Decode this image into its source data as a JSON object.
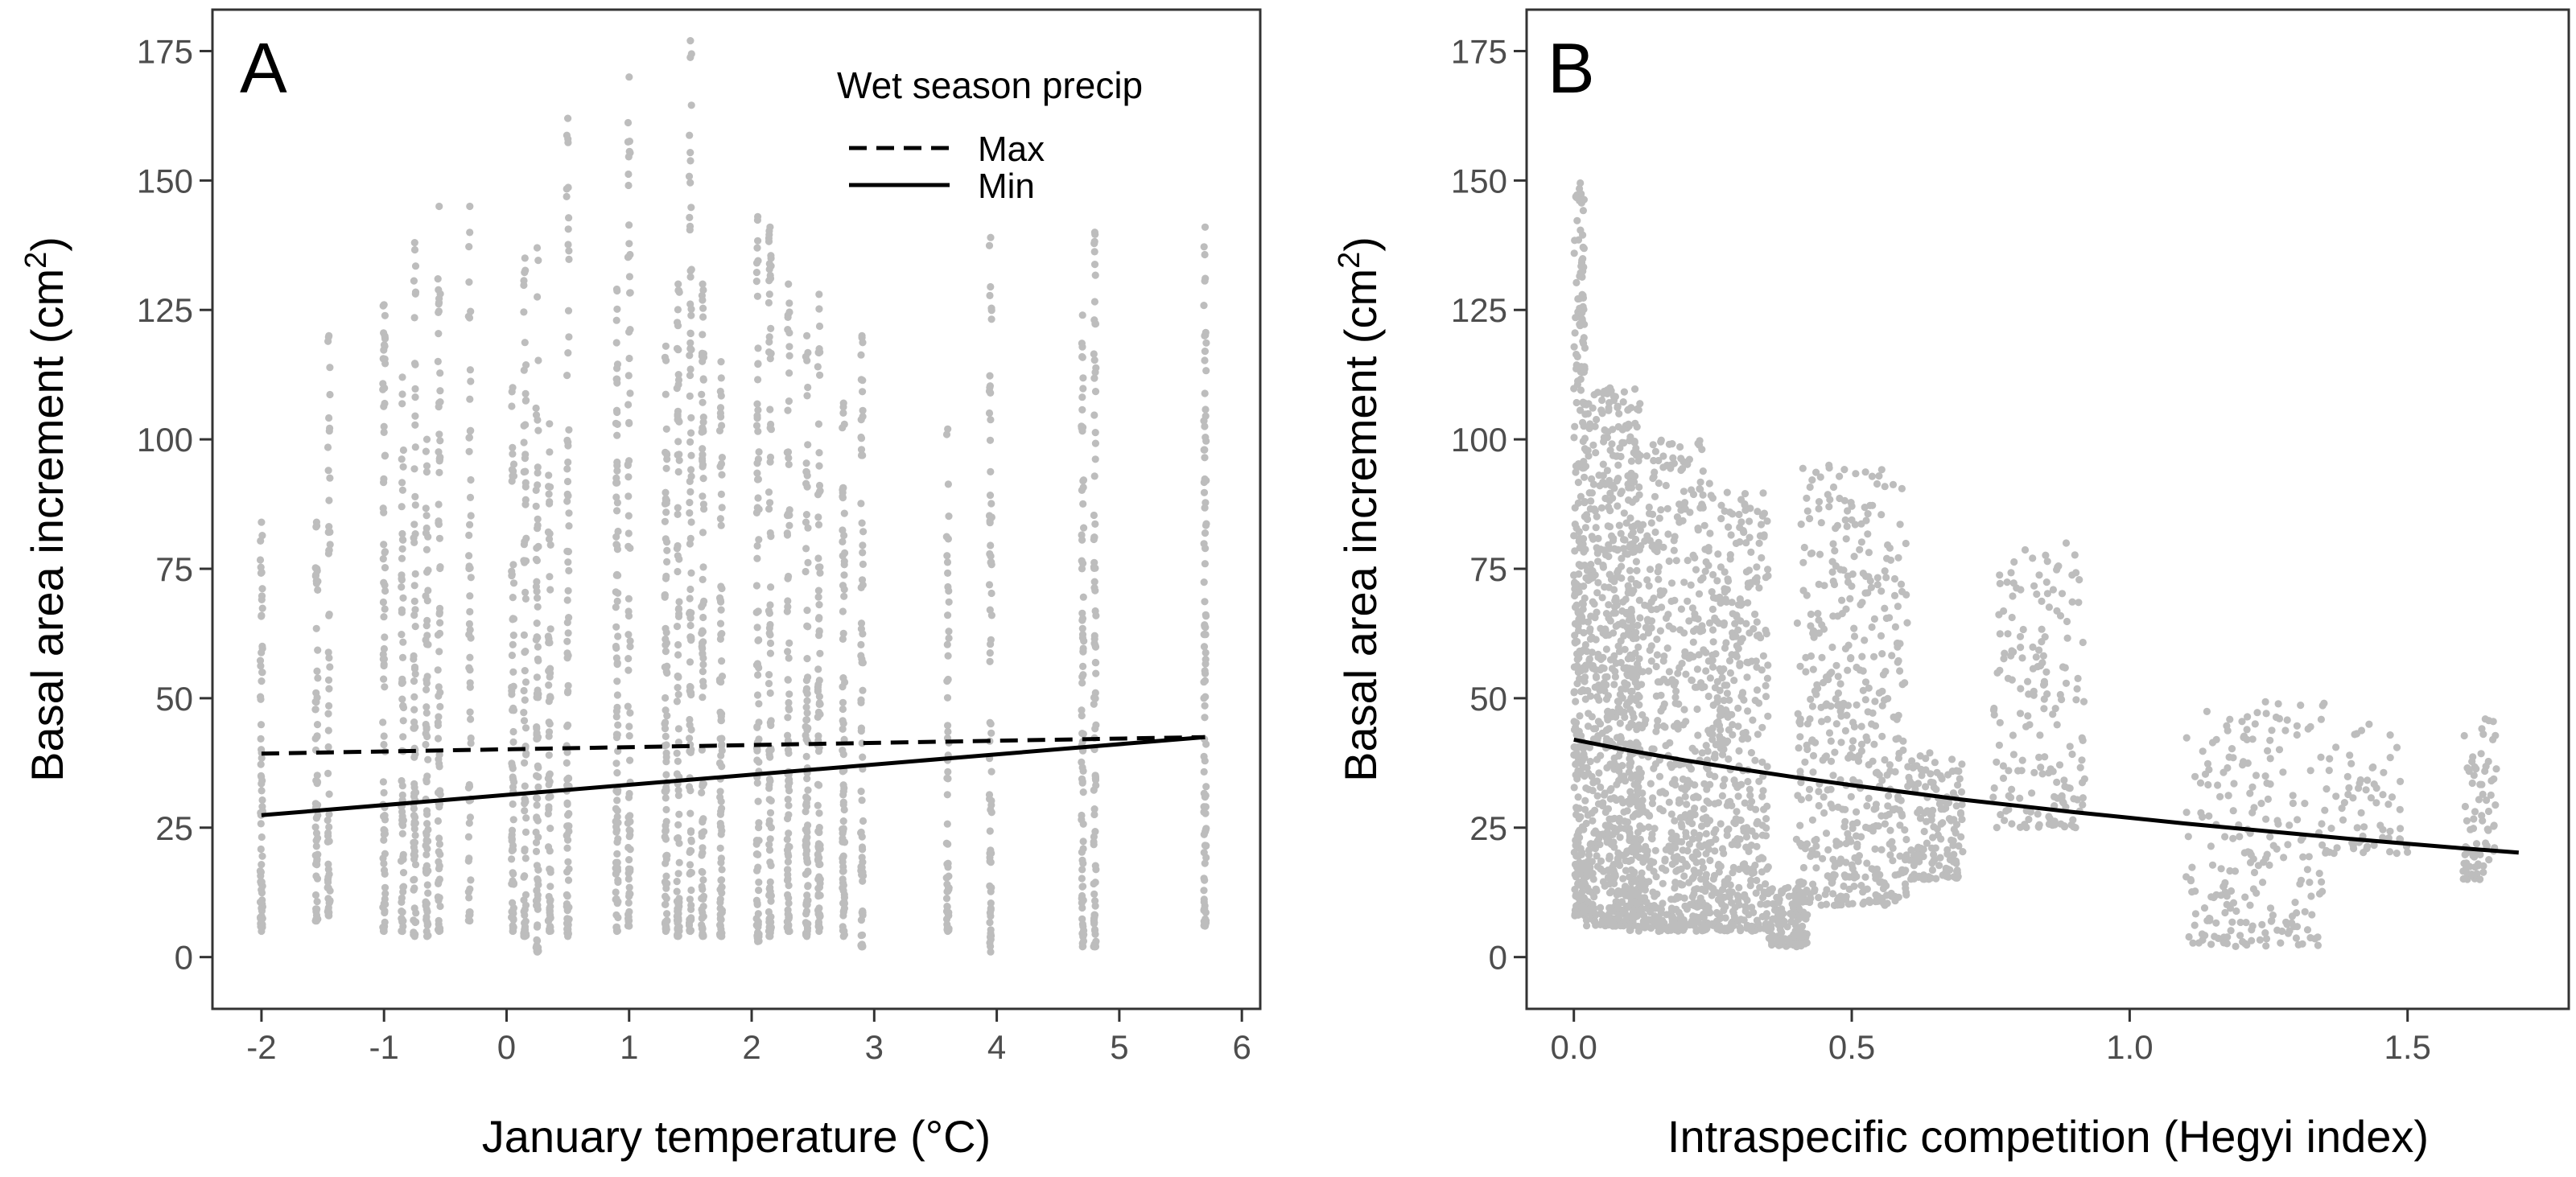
{
  "chart_data": [
    {
      "type": "scatter",
      "panel_label": "A",
      "xlabel": "January temperature (°C)",
      "ylabel": "Basal area increment",
      "ylabel_unit": "(cm",
      "ylabel_unit_sup": "2",
      "ylabel_unit_close": ")",
      "xlim": [
        -2.4,
        6.15
      ],
      "ylim": [
        -10,
        183
      ],
      "xticks": [
        -2,
        -1,
        0,
        1,
        2,
        3,
        4,
        5,
        6
      ],
      "xtick_labels": [
        "-2",
        "-1",
        "0",
        "1",
        "2",
        "3",
        "4",
        "5",
        "6"
      ],
      "yticks": [
        0,
        25,
        50,
        75,
        100,
        125,
        150,
        175
      ],
      "ytick_labels": [
        "0",
        "25",
        "50",
        "75",
        "100",
        "125",
        "150",
        "175"
      ],
      "point_color": "#bdbdbd",
      "line_color": "#000000",
      "legend": {
        "title": "Wet season precip",
        "position": "top-right",
        "entries": [
          {
            "label": "Max",
            "dash": "dashed"
          },
          {
            "label": "Min",
            "dash": "solid"
          }
        ]
      },
      "series": [
        {
          "name": "Max",
          "dash": "dashed",
          "x": [
            -2,
            5.7
          ],
          "y": [
            39.3,
            42.5
          ]
        },
        {
          "name": "Min",
          "dash": "solid",
          "x": [
            -2,
            5.7
          ],
          "y": [
            27.4,
            42.5
          ]
        }
      ],
      "scatter": {
        "description": "observed tree-level increments grouped at site January temperatures",
        "columns": [
          {
            "x": -2.0,
            "min": 5,
            "max": 84,
            "n": 70
          },
          {
            "x": -1.55,
            "min": 7,
            "max": 84,
            "n": 60
          },
          {
            "x": -1.45,
            "min": 8,
            "max": 120,
            "n": 60
          },
          {
            "x": -1.0,
            "min": 5,
            "max": 126,
            "n": 80
          },
          {
            "x": -0.85,
            "min": 5,
            "max": 112,
            "n": 70
          },
          {
            "x": -0.75,
            "min": 4,
            "max": 138,
            "n": 80
          },
          {
            "x": -0.65,
            "min": 4,
            "max": 100,
            "n": 70
          },
          {
            "x": -0.55,
            "min": 5,
            "max": 145,
            "n": 80
          },
          {
            "x": -0.3,
            "min": 7,
            "max": 145,
            "n": 60
          },
          {
            "x": 0.05,
            "min": 5,
            "max": 110,
            "n": 70
          },
          {
            "x": 0.15,
            "min": 4,
            "max": 135,
            "n": 80
          },
          {
            "x": 0.25,
            "min": 1,
            "max": 137,
            "n": 90
          },
          {
            "x": 0.35,
            "min": 5,
            "max": 103,
            "n": 70
          },
          {
            "x": 0.5,
            "min": 4,
            "max": 162,
            "n": 90
          },
          {
            "x": 0.9,
            "min": 5,
            "max": 129,
            "n": 90
          },
          {
            "x": 1.0,
            "min": 6,
            "max": 170,
            "n": 80
          },
          {
            "x": 1.3,
            "min": 5,
            "max": 118,
            "n": 90
          },
          {
            "x": 1.4,
            "min": 4,
            "max": 130,
            "n": 90
          },
          {
            "x": 1.5,
            "min": 5,
            "max": 177,
            "n": 100
          },
          {
            "x": 1.6,
            "min": 4,
            "max": 130,
            "n": 90
          },
          {
            "x": 1.75,
            "min": 4,
            "max": 115,
            "n": 90
          },
          {
            "x": 2.05,
            "min": 3,
            "max": 143,
            "n": 90
          },
          {
            "x": 2.15,
            "min": 4,
            "max": 141,
            "n": 90
          },
          {
            "x": 2.3,
            "min": 5,
            "max": 130,
            "n": 90
          },
          {
            "x": 2.45,
            "min": 4,
            "max": 120,
            "n": 90
          },
          {
            "x": 2.55,
            "min": 5,
            "max": 128,
            "n": 90
          },
          {
            "x": 2.75,
            "min": 4,
            "max": 107,
            "n": 80
          },
          {
            "x": 2.9,
            "min": 2,
            "max": 120,
            "n": 70
          },
          {
            "x": 3.6,
            "min": 5,
            "max": 102,
            "n": 60
          },
          {
            "x": 3.95,
            "min": 1,
            "max": 139,
            "n": 70
          },
          {
            "x": 4.7,
            "min": 2,
            "max": 124,
            "n": 80
          },
          {
            "x": 4.8,
            "min": 2,
            "max": 140,
            "n": 90
          },
          {
            "x": 5.7,
            "min": 6,
            "max": 141,
            "n": 100
          }
        ]
      }
    },
    {
      "type": "scatter",
      "panel_label": "B",
      "xlabel": "Intraspecific competition (Hegyi index)",
      "ylabel": "Basal area increment",
      "ylabel_unit": "(cm",
      "ylabel_unit_sup": "2",
      "ylabel_unit_close": ")",
      "xlim": [
        -0.085,
        1.79
      ],
      "ylim": [
        -10,
        183
      ],
      "xticks": [
        0.0,
        0.5,
        1.0,
        1.5
      ],
      "xtick_labels": [
        "0.0",
        "0.5",
        "1.0",
        "1.5"
      ],
      "yticks": [
        0,
        25,
        50,
        75,
        100,
        125,
        150,
        175
      ],
      "ytick_labels": [
        "0",
        "25",
        "50",
        "75",
        "100",
        "125",
        "150",
        "175"
      ],
      "point_color": "#bdbdbd",
      "line_color": "#000000",
      "series": [
        {
          "name": "fit",
          "dash": "solid",
          "x": [
            0.0,
            0.1,
            0.2,
            0.3,
            0.4,
            0.5,
            0.6,
            0.7,
            0.8,
            0.9,
            1.0,
            1.1,
            1.2,
            1.3,
            1.4,
            1.5,
            1.6,
            1.7
          ],
          "y": [
            42.0,
            39.9,
            38.0,
            36.3,
            34.7,
            33.2,
            31.8,
            30.4,
            29.2,
            28.0,
            26.9,
            25.8,
            24.8,
            23.8,
            22.8,
            21.9,
            21.0,
            20.2
          ]
        }
      ],
      "scatter": {
        "description": "observed tree-level increments versus competition index",
        "clusters": [
          {
            "x": [
              0.0,
              0.02
            ],
            "y": [
              8,
              150
            ],
            "n": 300
          },
          {
            "x": [
              0.02,
              0.12
            ],
            "y": [
              6,
              110
            ],
            "n": 700
          },
          {
            "x": [
              0.1,
              0.25
            ],
            "y": [
              5,
              100
            ],
            "n": 650
          },
          {
            "x": [
              0.25,
              0.35
            ],
            "y": [
              5,
              90
            ],
            "n": 400
          },
          {
            "x": [
              0.35,
              0.42
            ],
            "y": [
              2,
              14
            ],
            "n": 120
          },
          {
            "x": [
              0.4,
              0.6
            ],
            "y": [
              10,
              95
            ],
            "n": 500
          },
          {
            "x": [
              0.6,
              0.7
            ],
            "y": [
              15,
              40
            ],
            "n": 150
          },
          {
            "x": [
              0.75,
              0.92
            ],
            "y": [
              25,
              80
            ],
            "n": 180
          },
          {
            "x": [
              1.1,
              1.35
            ],
            "y": [
              2,
              50
            ],
            "n": 220
          },
          {
            "x": [
              1.35,
              1.5
            ],
            "y": [
              20,
              45
            ],
            "n": 70
          },
          {
            "x": [
              1.6,
              1.66
            ],
            "y": [
              15,
              48
            ],
            "n": 80
          }
        ]
      }
    }
  ]
}
